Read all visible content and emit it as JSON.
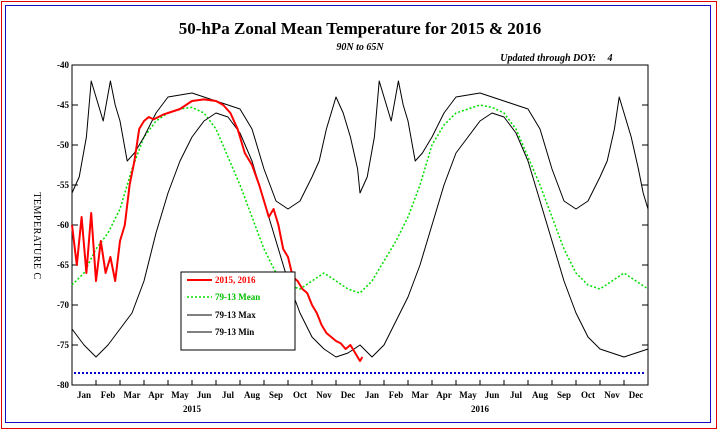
{
  "chart_data": {
    "type": "line",
    "title": "50-hPa Zonal Mean Temperature for 2015 & 2016",
    "subtitle": "90N to 65N",
    "update_label": "Updated through DOY:",
    "update_value": "4",
    "ylabel": "TEMPERATURE C",
    "ylim": [
      -80,
      -40
    ],
    "yticks": [
      "-40",
      "-45",
      "-50",
      "-55",
      "-60",
      "-65",
      "-70",
      "-75",
      "-80"
    ],
    "month_labels": [
      "Jan",
      "Feb",
      "Mar",
      "Apr",
      "May",
      "Jun",
      "Jul",
      "Aug",
      "Sep",
      "Oct",
      "Nov",
      "Dec",
      "Jan",
      "Feb",
      "Mar",
      "Apr",
      "May",
      "Jun",
      "Jul",
      "Aug",
      "Sep",
      "Oct",
      "Nov",
      "Dec"
    ],
    "year_labels": [
      "2015",
      "2016"
    ],
    "reference_line": -78.5,
    "legend": {
      "position": "lower-left",
      "entries": [
        {
          "label": "2015, 2016",
          "color": "#ff0000"
        },
        {
          "label": "79-13 Mean",
          "color": "#00e000"
        },
        {
          "label": "79-13 Max",
          "color": "#000000"
        },
        {
          "label": "79-13 Min",
          "color": "#000000"
        }
      ]
    },
    "colors": {
      "observed": "#ff0000",
      "mean": "#00e000",
      "extremes": "#000000",
      "reference": "#0000cc",
      "frame": "#1010c0",
      "border": "#e00000"
    },
    "series": [
      {
        "name": "79-13 Mean",
        "x": [
          0,
          0.5,
          1,
          1.5,
          2,
          2.5,
          3,
          3.5,
          4,
          4.5,
          5,
          5.5,
          6,
          6.5,
          7,
          7.5,
          8,
          8.5,
          9,
          9.5,
          10,
          10.5,
          11,
          11.5,
          12,
          12.5,
          13,
          13.5,
          14,
          14.5,
          15,
          15.5,
          16,
          16.5,
          17,
          17.5,
          18,
          18.5,
          19,
          19.5,
          20,
          20.5,
          21,
          21.5,
          22,
          22.5,
          23,
          23.5,
          24
        ],
        "y": [
          -67.5,
          -66,
          -63,
          -61,
          -58,
          -53,
          -49,
          -47,
          -46,
          -45.5,
          -45.3,
          -46,
          -48,
          -51.5,
          -55,
          -59,
          -63,
          -66,
          -67.5,
          -68,
          -67,
          -66,
          -67,
          -68,
          -68.5,
          -67,
          -64.5,
          -62,
          -59,
          -55,
          -50,
          -47.5,
          -46,
          -45.5,
          -45,
          -45.3,
          -46,
          -48,
          -51.5,
          -55,
          -59,
          -63,
          -66,
          -67.5,
          -68,
          -67,
          -66,
          -67,
          -68
        ]
      },
      {
        "name": "79-13 Max",
        "x": [
          0,
          0.3,
          0.6,
          0.8,
          1,
          1.3,
          1.6,
          1.8,
          2,
          2.3,
          2.6,
          3,
          3.5,
          4,
          5,
          6,
          7,
          7.5,
          8,
          8.5,
          9,
          9.5,
          10,
          10.3,
          10.6,
          11,
          11.3,
          11.6,
          11.9,
          12,
          12.3,
          12.6,
          12.8,
          13,
          13.3,
          13.6,
          13.8,
          14,
          14.3,
          14.6,
          15,
          15.5,
          16,
          17,
          18,
          19,
          19.5,
          20,
          20.5,
          21,
          21.5,
          22,
          22.3,
          22.6,
          22.8,
          23,
          23.3,
          23.6,
          23.8,
          24
        ],
        "y": [
          -56,
          -54,
          -49,
          -42,
          -44,
          -47,
          -42,
          -45,
          -47,
          -52,
          -51,
          -49,
          -46,
          -44,
          -43.5,
          -44.5,
          -45.5,
          -48,
          -53,
          -57,
          -58,
          -57,
          -54,
          -52,
          -48,
          -44,
          -46,
          -49,
          -53,
          -56,
          -54,
          -49,
          -42,
          -44,
          -47,
          -42,
          -45,
          -47,
          -52,
          -51,
          -49,
          -46,
          -44,
          -43.5,
          -44.5,
          -45.5,
          -48,
          -53,
          -57,
          -58,
          -57,
          -54,
          -52,
          -48,
          -44,
          -46,
          -49,
          -53,
          -56,
          -58
        ]
      },
      {
        "name": "79-13 Min",
        "x": [
          0,
          0.5,
          1,
          1.5,
          2,
          2.5,
          3,
          3.5,
          4,
          4.5,
          5,
          5.5,
          6,
          6.5,
          7,
          7.5,
          8,
          8.5,
          9,
          9.5,
          10,
          10.5,
          11,
          11.5,
          12,
          12.5,
          13,
          13.5,
          14,
          14.5,
          15,
          15.5,
          16,
          16.5,
          17,
          17.5,
          18,
          18.5,
          19,
          19.5,
          20,
          20.5,
          21,
          21.5,
          22,
          22.5,
          23,
          23.5,
          24
        ],
        "y": [
          -73,
          -75,
          -76.5,
          -75,
          -73,
          -71,
          -67,
          -61,
          -56,
          -52,
          -49,
          -47,
          -46,
          -46.5,
          -48.5,
          -52,
          -57,
          -62,
          -67,
          -71,
          -74,
          -75.5,
          -76.5,
          -76,
          -75,
          -76.5,
          -75,
          -72,
          -69,
          -65,
          -60,
          -55,
          -51,
          -49,
          -47,
          -46,
          -46.5,
          -48.5,
          -52,
          -57,
          -62,
          -67,
          -71,
          -74,
          -75.5,
          -76,
          -76.5,
          -76,
          -75.5
        ]
      },
      {
        "name": "2015, 2016",
        "x": [
          0,
          0.2,
          0.4,
          0.6,
          0.8,
          1,
          1.2,
          1.4,
          1.6,
          1.8,
          2,
          2.2,
          2.4,
          2.6,
          2.8,
          3,
          3.2,
          3.4,
          3.6,
          3.8,
          4,
          4.5,
          5,
          5.5,
          6,
          6.3,
          6.6,
          6.9,
          7.2,
          7.5,
          7.8,
          8,
          8.2,
          8.4,
          8.6,
          8.8,
          9,
          9.2,
          9.4,
          9.6,
          9.8,
          10,
          10.2,
          10.4,
          10.6,
          10.8,
          11,
          11.2,
          11.4,
          11.6,
          11.8,
          12,
          12.1
        ],
        "y": [
          -60,
          -65,
          -59,
          -66,
          -58.5,
          -67,
          -62,
          -66,
          -64,
          -67,
          -62,
          -60,
          -55,
          -52,
          -48,
          -47,
          -46.5,
          -46.8,
          -46.5,
          -46.2,
          -46,
          -45.5,
          -44.5,
          -44.3,
          -44.5,
          -45,
          -46,
          -48,
          -51,
          -52.5,
          -55,
          -57,
          -59,
          -58,
          -60,
          -63,
          -64,
          -66.5,
          -67,
          -68,
          -68.5,
          -70,
          -71,
          -72.5,
          -73.5,
          -74,
          -74.5,
          -74.8,
          -75.5,
          -75,
          -76,
          -77,
          -76.5
        ]
      }
    ]
  }
}
